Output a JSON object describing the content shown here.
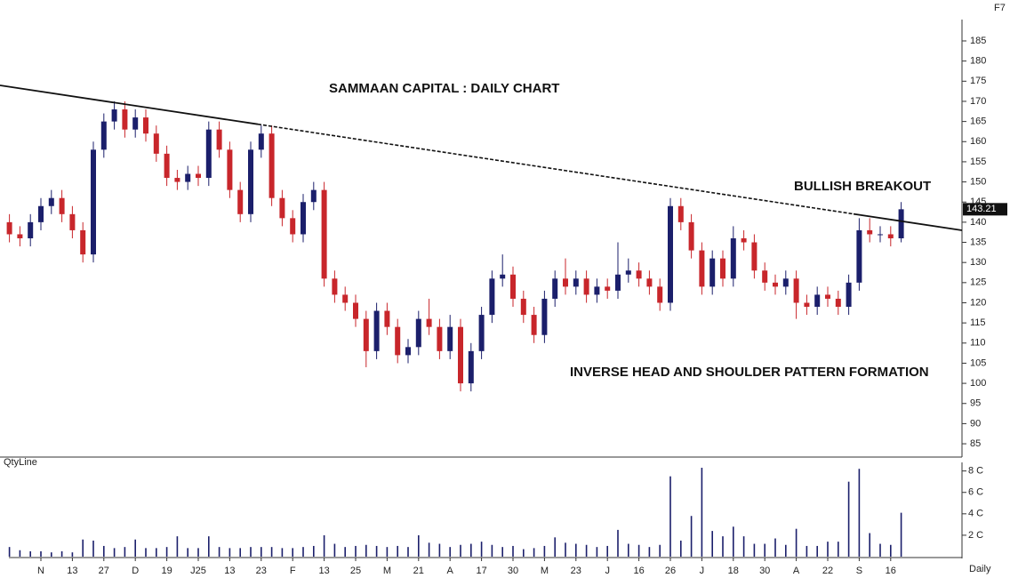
{
  "chart_data": [
    {
      "type": "candlestick",
      "title": "SAMMAAN CAPITAL : DAILY CHART",
      "corner_text": "F7",
      "annotations": [
        "BULLISH BREAKOUT",
        "INVERSE HEAD AND SHOULDER PATTERN FORMATION"
      ],
      "up_color": "#1b1f6b",
      "down_color": "#c8262b",
      "open": [
        140,
        137,
        136,
        140,
        144,
        146,
        142,
        138,
        132,
        158,
        165,
        168,
        163,
        166,
        162,
        157,
        151,
        150,
        152,
        151,
        163,
        158,
        148,
        142,
        158,
        162,
        146,
        141,
        137,
        145,
        148,
        126,
        122,
        120,
        116,
        108,
        118,
        114,
        107,
        109,
        116,
        114,
        108,
        114,
        100,
        108,
        117,
        126,
        127,
        121,
        117,
        112,
        121,
        126,
        124,
        126,
        122,
        124,
        123,
        127,
        128,
        126,
        124,
        120,
        144,
        140,
        133,
        124,
        131,
        126,
        136,
        135,
        128,
        125,
        124,
        126,
        120,
        119,
        122,
        121,
        119,
        125,
        138,
        137,
        137,
        136
      ],
      "high": [
        142,
        139,
        142,
        146,
        148,
        148,
        144,
        140,
        160,
        167,
        170,
        170,
        168,
        168,
        164,
        159,
        153,
        154,
        154,
        165,
        165,
        160,
        150,
        160,
        164,
        164,
        148,
        143,
        147,
        150,
        150,
        128,
        124,
        122,
        118,
        120,
        120,
        116,
        111,
        118,
        121,
        116,
        117,
        116,
        110,
        119,
        128,
        132,
        129,
        123,
        119,
        123,
        128,
        131,
        128,
        128,
        126,
        126,
        135,
        131,
        130,
        128,
        126,
        146,
        146,
        142,
        135,
        133,
        133,
        139,
        138,
        137,
        130,
        127,
        128,
        128,
        122,
        124,
        124,
        123,
        127,
        141,
        141,
        139,
        139,
        145
      ],
      "low": [
        135,
        134,
        134,
        138,
        142,
        140,
        136,
        130,
        130,
        156,
        163,
        161,
        161,
        160,
        155,
        149,
        148,
        148,
        149,
        149,
        156,
        146,
        140,
        140,
        156,
        144,
        139,
        135,
        135,
        143,
        124,
        120,
        118,
        114,
        104,
        106,
        112,
        105,
        105,
        107,
        112,
        106,
        106,
        98,
        98,
        106,
        115,
        124,
        119,
        115,
        110,
        110,
        119,
        122,
        122,
        120,
        120,
        121,
        121,
        125,
        124,
        122,
        118,
        118,
        138,
        131,
        122,
        122,
        124,
        124,
        133,
        126,
        123,
        122,
        122,
        116,
        117,
        117,
        119,
        117,
        117,
        123,
        135,
        135,
        134,
        135
      ],
      "close": [
        137,
        136,
        140,
        144,
        146,
        142,
        138,
        132,
        158,
        165,
        168,
        163,
        166,
        162,
        157,
        151,
        150,
        152,
        151,
        163,
        158,
        148,
        142,
        158,
        162,
        146,
        141,
        137,
        145,
        148,
        126,
        122,
        120,
        116,
        108,
        118,
        114,
        107,
        109,
        116,
        114,
        108,
        114,
        100,
        108,
        117,
        126,
        127,
        121,
        117,
        112,
        121,
        126,
        124,
        126,
        122,
        124,
        123,
        127,
        128,
        126,
        124,
        120,
        144,
        140,
        133,
        124,
        131,
        126,
        136,
        135,
        128,
        125,
        124,
        126,
        120,
        119,
        122,
        121,
        119,
        125,
        138,
        137,
        137,
        136,
        143.21
      ],
      "ylim": [
        81.7,
        190.3
      ],
      "yticks": [
        85,
        90,
        95,
        100,
        105,
        110,
        115,
        120,
        125,
        130,
        135,
        140,
        145,
        150,
        155,
        160,
        165,
        170,
        175,
        180,
        185
      ]
    },
    {
      "type": "bar",
      "title": "QtyLine",
      "xlabel": "Daily",
      "color": "#1b1f6b",
      "categories": [
        null,
        null,
        null,
        "N",
        null,
        null,
        "13",
        null,
        null,
        "27",
        null,
        null,
        "D",
        null,
        null,
        "19",
        null,
        null,
        "J25",
        null,
        null,
        "13",
        null,
        null,
        "23",
        null,
        null,
        "F",
        null,
        null,
        "13",
        null,
        null,
        "25",
        null,
        null,
        "M",
        null,
        null,
        "21",
        null,
        null,
        "A",
        null,
        null,
        "17",
        null,
        null,
        "30",
        null,
        null,
        "M",
        null,
        null,
        "23",
        null,
        null,
        "J",
        null,
        null,
        "16",
        null,
        null,
        "26",
        null,
        null,
        "J",
        null,
        null,
        "18",
        null,
        null,
        "30",
        null,
        null,
        "A",
        null,
        null,
        "22",
        null,
        null,
        "S",
        null,
        null,
        "16",
        null
      ],
      "values": [
        0.9,
        0.6,
        0.5,
        0.5,
        0.4,
        0.5,
        0.4,
        1.6,
        1.5,
        1.0,
        0.8,
        0.9,
        1.6,
        0.8,
        0.8,
        0.9,
        1.9,
        0.8,
        0.8,
        1.9,
        0.9,
        0.8,
        0.8,
        0.9,
        0.9,
        0.9,
        0.8,
        0.8,
        0.9,
        1.0,
        2.0,
        1.2,
        0.9,
        1.0,
        1.1,
        1.0,
        0.9,
        1.0,
        0.9,
        2.0,
        1.3,
        1.2,
        0.9,
        1.1,
        1.2,
        1.4,
        1.1,
        0.9,
        1.0,
        0.7,
        0.8,
        1.0,
        1.8,
        1.3,
        1.2,
        1.1,
        0.9,
        1.0,
        2.5,
        1.2,
        1.1,
        0.9,
        1.1,
        7.5,
        1.5,
        3.8,
        8.3,
        2.4,
        1.9,
        2.8,
        1.9,
        1.2,
        1.2,
        1.7,
        1.1,
        2.6,
        1.0,
        1.0,
        1.4,
        1.4,
        7.0,
        8.2,
        2.2,
        1.2,
        1.1,
        4.1
      ],
      "ylim": [
        0,
        8.8
      ],
      "yticks": [
        {
          "value": 2,
          "label": "2 C"
        },
        {
          "value": 4,
          "label": "4 C"
        },
        {
          "value": 6,
          "label": "6 C"
        },
        {
          "value": 8,
          "label": "8 C"
        }
      ]
    }
  ]
}
